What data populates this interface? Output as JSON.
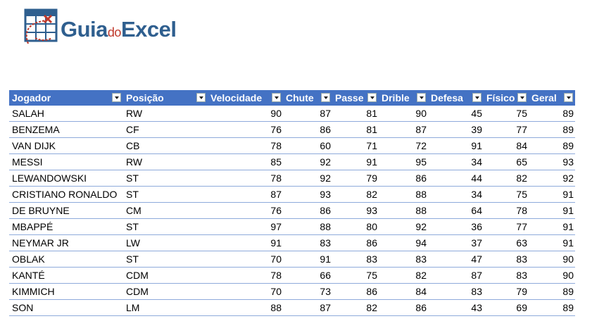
{
  "logo": {
    "parts": [
      "Guia",
      "do",
      "Excel"
    ]
  },
  "table": {
    "header": [
      "Jogador",
      "Posição",
      "Velocidade",
      "Chute",
      "Passe",
      "Drible",
      "Defesa",
      "Físico",
      "Geral"
    ],
    "rows": [
      [
        "SALAH",
        "RW",
        90,
        87,
        81,
        90,
        45,
        75,
        89
      ],
      [
        "BENZEMA",
        "CF",
        76,
        86,
        81,
        87,
        39,
        77,
        89
      ],
      [
        "VAN DIJK",
        "CB",
        78,
        60,
        71,
        72,
        91,
        84,
        89
      ],
      [
        "MESSI",
        "RW",
        85,
        92,
        91,
        95,
        34,
        65,
        93
      ],
      [
        "LEWANDOWSKI",
        "ST",
        78,
        92,
        79,
        86,
        44,
        82,
        92
      ],
      [
        "CRISTIANO RONALDO",
        "ST",
        87,
        93,
        82,
        88,
        34,
        75,
        91
      ],
      [
        "DE BRUYNE",
        "CM",
        76,
        86,
        93,
        88,
        64,
        78,
        91
      ],
      [
        "MBAPPÉ",
        "ST",
        97,
        88,
        80,
        92,
        36,
        77,
        91
      ],
      [
        "NEYMAR JR",
        "LW",
        91,
        83,
        86,
        94,
        37,
        63,
        91
      ],
      [
        "OBLAK",
        "ST",
        70,
        91,
        83,
        83,
        47,
        83,
        90
      ],
      [
        "KANTÉ",
        "CDM",
        78,
        66,
        75,
        82,
        87,
        83,
        90
      ],
      [
        "KIMMICH",
        "CDM",
        70,
        73,
        86,
        84,
        83,
        79,
        89
      ],
      [
        "SON",
        "LM",
        88,
        87,
        82,
        86,
        43,
        69,
        89
      ]
    ]
  }
}
